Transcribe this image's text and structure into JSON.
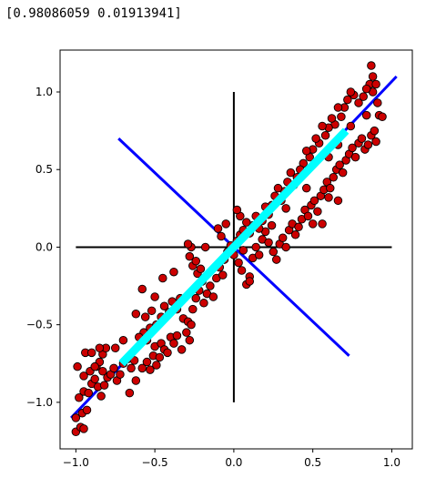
{
  "output": {
    "text": "[0.98086059 0.01913941]"
  },
  "chart_data": {
    "type": "scatter",
    "xlim": [
      -1.1,
      1.13
    ],
    "ylim": [
      -1.3,
      1.27
    ],
    "xticks": [
      -1.0,
      -0.5,
      0.0,
      0.5,
      1.0
    ],
    "yticks": [
      -1.0,
      -0.5,
      0.0,
      0.5,
      1.0
    ],
    "xtick_labels": [
      "−1.0",
      "−0.5",
      "0.0",
      "0.5",
      "1.0"
    ],
    "ytick_labels": [
      "−1.0",
      "−0.5",
      "0.0",
      "0.5",
      "1.0"
    ],
    "grid": false,
    "colors": {
      "points": "#cc0000",
      "point_edge": "#000000",
      "principal_axis": "#00ffff",
      "eigenvector_lines": "#0000ff",
      "axis_cross": "#000000"
    },
    "axis_cross": [
      {
        "x": [
          -1.0,
          1.0
        ],
        "y": [
          0.0,
          0.0
        ]
      },
      {
        "x": [
          0.0,
          0.0
        ],
        "y": [
          -1.0,
          1.0
        ]
      }
    ],
    "eigen_lines": [
      {
        "x": [
          -1.03,
          1.03
        ],
        "y": [
          -1.1,
          1.1
        ]
      },
      {
        "x": [
          -0.73,
          0.73
        ],
        "y": [
          0.7,
          -0.7
        ]
      }
    ],
    "principal_segment": {
      "x": [
        -0.71,
        0.71
      ],
      "y": [
        -0.75,
        0.75
      ]
    },
    "points": [
      [
        -1.0,
        -1.19
      ],
      [
        -0.97,
        -1.16
      ],
      [
        -0.95,
        -1.17
      ],
      [
        -1.0,
        -1.1
      ],
      [
        -0.96,
        -1.07
      ],
      [
        -0.93,
        -1.05
      ],
      [
        -0.98,
        -0.97
      ],
      [
        -0.95,
        -0.93
      ],
      [
        -0.92,
        -0.94
      ],
      [
        -0.9,
        -0.88
      ],
      [
        -0.88,
        -0.85
      ],
      [
        -0.86,
        -0.9
      ],
      [
        -0.84,
        -0.96
      ],
      [
        -0.82,
        -0.89
      ],
      [
        -0.8,
        -0.84
      ],
      [
        -0.83,
        -0.8
      ],
      [
        -0.87,
        -0.77
      ],
      [
        -0.91,
        -0.8
      ],
      [
        -0.95,
        -0.83
      ],
      [
        -0.99,
        -0.77
      ],
      [
        -0.94,
        -0.68
      ],
      [
        -0.9,
        -0.68
      ],
      [
        -0.85,
        -0.74
      ],
      [
        -0.83,
        -0.69
      ],
      [
        -0.81,
        -0.65
      ],
      [
        -0.85,
        -0.65
      ],
      [
        -0.78,
        -0.82
      ],
      [
        -0.76,
        -0.78
      ],
      [
        -0.74,
        -0.86
      ],
      [
        -0.72,
        -0.82
      ],
      [
        -0.7,
        -0.75
      ],
      [
        -0.67,
        -0.72
      ],
      [
        -0.65,
        -0.78
      ],
      [
        -0.63,
        -0.73
      ],
      [
        -0.66,
        -0.94
      ],
      [
        -0.62,
        -0.86
      ],
      [
        -0.58,
        -0.78
      ],
      [
        -0.55,
        -0.74
      ],
      [
        -0.53,
        -0.79
      ],
      [
        -0.51,
        -0.7
      ],
      [
        -0.49,
        -0.76
      ],
      [
        -0.47,
        -0.71
      ],
      [
        -0.5,
        -0.64
      ],
      [
        -0.46,
        -0.62
      ],
      [
        -0.44,
        -0.66
      ],
      [
        -0.42,
        -0.68
      ],
      [
        -0.4,
        -0.58
      ],
      [
        -0.38,
        -0.62
      ],
      [
        -0.55,
        -0.6
      ],
      [
        -0.57,
        -0.55
      ],
      [
        -0.6,
        -0.58
      ],
      [
        -0.53,
        -0.52
      ],
      [
        -0.56,
        -0.45
      ],
      [
        -0.52,
        -0.41
      ],
      [
        -0.49,
        -0.5
      ],
      [
        -0.46,
        -0.45
      ],
      [
        -0.44,
        -0.38
      ],
      [
        -0.41,
        -0.42
      ],
      [
        -0.39,
        -0.35
      ],
      [
        -0.36,
        -0.4
      ],
      [
        -0.34,
        -0.33
      ],
      [
        -0.32,
        -0.46
      ],
      [
        -0.29,
        -0.48
      ],
      [
        -0.27,
        -0.5
      ],
      [
        -0.3,
        -0.55
      ],
      [
        -0.28,
        -0.6
      ],
      [
        -0.33,
        -0.66
      ],
      [
        -0.36,
        -0.57
      ],
      [
        -0.26,
        -0.4
      ],
      [
        -0.24,
        -0.33
      ],
      [
        -0.22,
        -0.28
      ],
      [
        -0.19,
        -0.36
      ],
      [
        -0.17,
        -0.3
      ],
      [
        -0.15,
        -0.25
      ],
      [
        -0.13,
        -0.32
      ],
      [
        -0.2,
        -0.22
      ],
      [
        -0.23,
        -0.17
      ],
      [
        -0.26,
        -0.12
      ],
      [
        -0.28,
        -0.06
      ],
      [
        -0.27,
        0.0
      ],
      [
        -0.29,
        0.02
      ],
      [
        -0.24,
        -0.09
      ],
      [
        -0.21,
        -0.14
      ],
      [
        -0.11,
        -0.2
      ],
      [
        -0.09,
        -0.13
      ],
      [
        -0.07,
        -0.18
      ],
      [
        -0.06,
        -0.08
      ],
      [
        -0.04,
        -0.03
      ],
      [
        -0.02,
        0.01
      ],
      [
        0.0,
        -0.05
      ],
      [
        0.02,
        0.04
      ],
      [
        0.04,
        0.08
      ],
      [
        0.06,
        -0.02
      ],
      [
        0.03,
        -0.1
      ],
      [
        0.05,
        -0.15
      ],
      [
        0.08,
        -0.24
      ],
      [
        0.1,
        -0.19
      ],
      [
        0.12,
        -0.07
      ],
      [
        0.14,
        0.0
      ],
      [
        0.16,
        -0.05
      ],
      [
        0.18,
        0.05
      ],
      [
        0.2,
        0.1
      ],
      [
        0.22,
        0.03
      ],
      [
        0.25,
        -0.03
      ],
      [
        0.27,
        -0.08
      ],
      [
        0.29,
        0.02
      ],
      [
        0.31,
        0.06
      ],
      [
        0.33,
        0.0
      ],
      [
        0.35,
        0.11
      ],
      [
        0.37,
        0.15
      ],
      [
        0.39,
        0.08
      ],
      [
        0.41,
        0.13
      ],
      [
        0.43,
        0.18
      ],
      [
        0.45,
        0.24
      ],
      [
        0.47,
        0.2
      ],
      [
        0.49,
        0.27
      ],
      [
        0.51,
        0.3
      ],
      [
        0.53,
        0.23
      ],
      [
        0.55,
        0.33
      ],
      [
        0.57,
        0.37
      ],
      [
        0.59,
        0.42
      ],
      [
        0.61,
        0.38
      ],
      [
        0.63,
        0.45
      ],
      [
        0.65,
        0.5
      ],
      [
        0.67,
        0.53
      ],
      [
        0.69,
        0.48
      ],
      [
        0.71,
        0.56
      ],
      [
        0.73,
        0.6
      ],
      [
        0.75,
        0.64
      ],
      [
        0.77,
        0.58
      ],
      [
        0.79,
        0.67
      ],
      [
        0.81,
        0.7
      ],
      [
        0.83,
        0.63
      ],
      [
        0.85,
        0.66
      ],
      [
        0.87,
        0.72
      ],
      [
        0.89,
        0.75
      ],
      [
        0.9,
        0.68
      ],
      [
        0.92,
        0.85
      ],
      [
        0.94,
        0.84
      ],
      [
        0.91,
        0.93
      ],
      [
        0.88,
        1.0
      ],
      [
        0.86,
        1.05
      ],
      [
        0.88,
        1.1
      ],
      [
        0.87,
        1.17
      ],
      [
        0.9,
        1.05
      ],
      [
        0.84,
        1.02
      ],
      [
        0.82,
        0.97
      ],
      [
        0.79,
        0.93
      ],
      [
        0.76,
        0.98
      ],
      [
        0.74,
        1.0
      ],
      [
        0.72,
        0.95
      ],
      [
        0.7,
        0.9
      ],
      [
        0.68,
        0.84
      ],
      [
        0.66,
        0.9
      ],
      [
        0.64,
        0.79
      ],
      [
        0.62,
        0.83
      ],
      [
        0.6,
        0.77
      ],
      [
        0.58,
        0.72
      ],
      [
        0.56,
        0.78
      ],
      [
        0.54,
        0.67
      ],
      [
        0.52,
        0.7
      ],
      [
        0.5,
        0.63
      ],
      [
        0.48,
        0.58
      ],
      [
        0.46,
        0.62
      ],
      [
        0.44,
        0.54
      ],
      [
        0.42,
        0.5
      ],
      [
        0.4,
        0.45
      ],
      [
        0.38,
        0.4
      ],
      [
        0.36,
        0.48
      ],
      [
        0.34,
        0.42
      ],
      [
        0.32,
        0.36
      ],
      [
        0.3,
        0.3
      ],
      [
        0.28,
        0.38
      ],
      [
        0.26,
        0.33
      ],
      [
        0.24,
        0.27
      ],
      [
        0.22,
        0.21
      ],
      [
        0.2,
        0.26
      ],
      [
        0.18,
        0.17
      ],
      [
        0.16,
        0.12
      ],
      [
        0.14,
        0.2
      ],
      [
        0.12,
        0.14
      ],
      [
        0.1,
        0.09
      ],
      [
        0.08,
        0.16
      ],
      [
        0.06,
        0.11
      ],
      [
        0.04,
        0.2
      ],
      [
        -0.08,
        0.07
      ],
      [
        -0.1,
        0.12
      ],
      [
        -0.05,
        0.15
      ],
      [
        0.02,
        0.24
      ],
      [
        0.24,
        0.14
      ],
      [
        0.46,
        0.38
      ],
      [
        0.6,
        0.58
      ],
      [
        0.66,
        0.66
      ],
      [
        0.74,
        0.78
      ],
      [
        0.84,
        0.85
      ],
      [
        0.6,
        0.32
      ],
      [
        0.56,
        0.15
      ],
      [
        0.66,
        0.3
      ],
      [
        0.5,
        0.15
      ],
      [
        -0.58,
        -0.27
      ],
      [
        -0.5,
        -0.32
      ],
      [
        -0.62,
        -0.43
      ],
      [
        -0.7,
        -0.6
      ],
      [
        -0.75,
        -0.65
      ],
      [
        -0.88,
        -0.77
      ],
      [
        -0.45,
        -0.2
      ],
      [
        -0.38,
        -0.16
      ],
      [
        -0.18,
        0.0
      ],
      [
        0.1,
        -0.22
      ],
      [
        0.33,
        0.25
      ]
    ]
  }
}
